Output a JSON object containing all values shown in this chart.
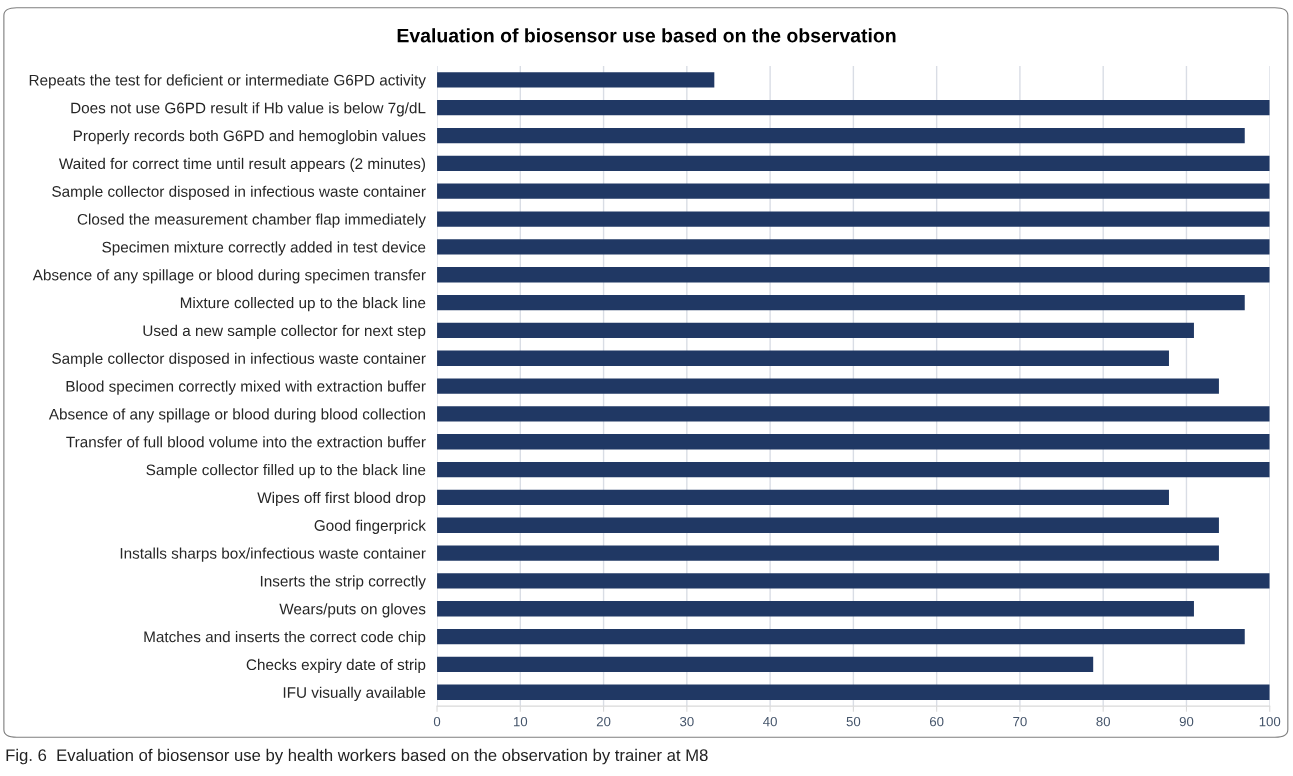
{
  "chart_data": {
    "type": "bar",
    "orientation": "horizontal",
    "title": "Evaluation of biosensor use based on the observation",
    "categories": [
      "Repeats the test for deficient or intermediate G6PD activity",
      "Does not use G6PD result if Hb value is below 7g/dL",
      "Properly records both G6PD and hemoglobin values",
      "Waited for correct time until result appears (2 minutes)",
      "Sample collector disposed in infectious waste container",
      "Closed the measurement chamber flap immediately",
      "Specimen mixture correctly added in test device",
      "Absence of any spillage or blood during specimen transfer",
      "Mixture collected up to the black line",
      "Used a new sample collector for next step",
      "Sample collector disposed in infectious waste container",
      "Blood specimen correctly mixed with extraction buffer",
      "Absence of any spillage or blood during blood collection",
      "Transfer of full blood volume into the extraction buffer",
      "Sample collector filled up to the black line",
      "Wipes off first blood drop",
      "Good fingerprick",
      "Installs sharps box/infectious waste container",
      "Inserts the strip correctly",
      "Wears/puts on gloves",
      "Matches and inserts the correct code chip",
      "Checks expiry date of strip",
      "IFU visually available"
    ],
    "values": [
      33.3,
      100,
      97.0,
      100,
      100,
      100,
      100,
      100,
      97.0,
      90.9,
      87.9,
      93.9,
      100,
      100,
      100,
      87.9,
      93.9,
      93.9,
      100,
      90.9,
      97.0,
      78.8,
      100
    ],
    "color": "#203864",
    "xlim": [
      0,
      100
    ],
    "xticks": [
      0,
      10,
      20,
      30,
      40,
      50,
      60,
      70,
      80,
      90,
      100
    ],
    "grid": "x",
    "annotations": [
      "Fig. 6  Evaluation of biosensor use by health workers based on the observation by trainer at M8"
    ]
  }
}
